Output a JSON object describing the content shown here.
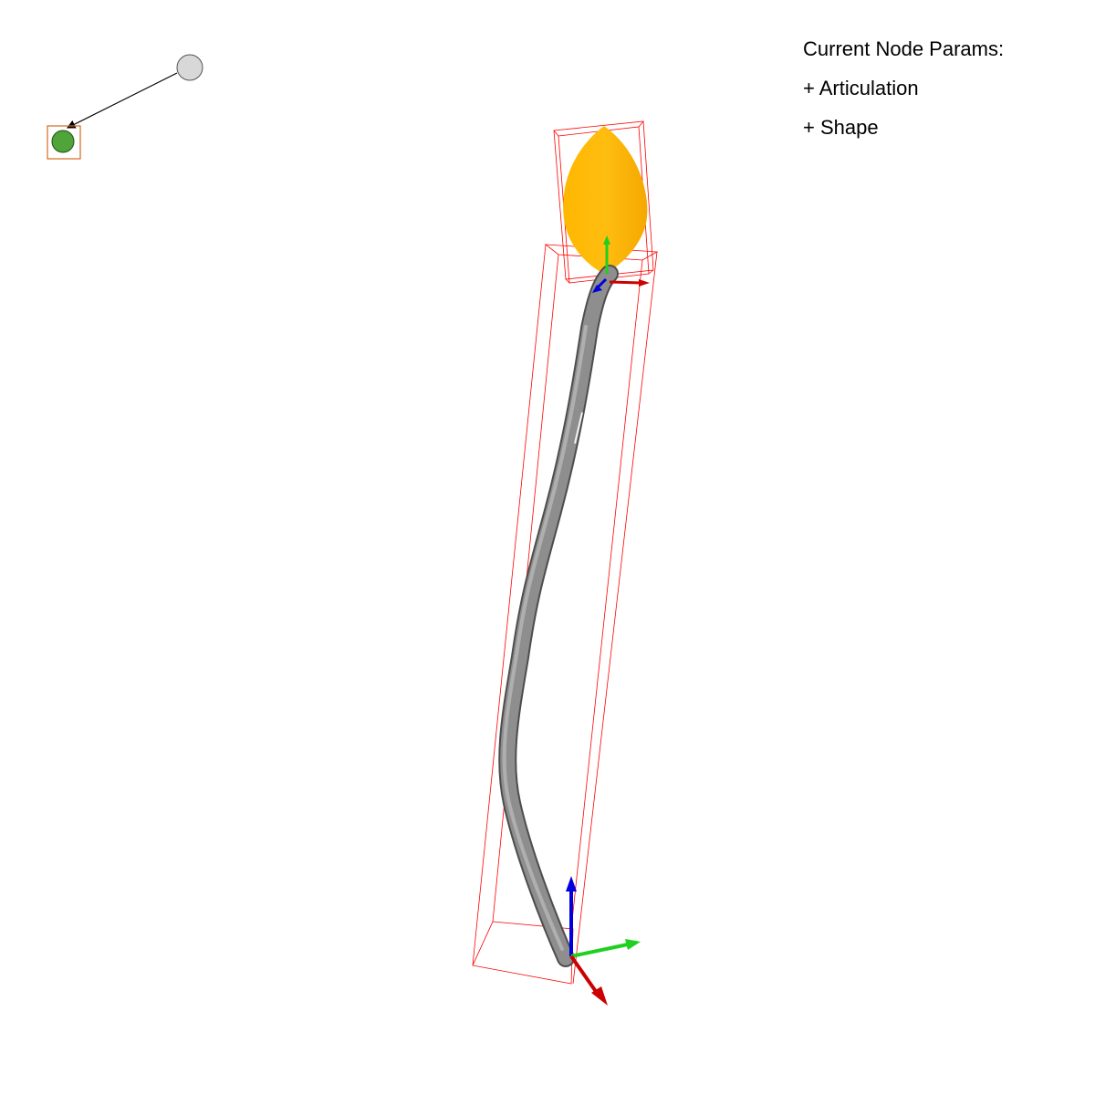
{
  "params_panel": {
    "title": "Current Node Params:",
    "items": [
      {
        "label": "+ Articulation"
      },
      {
        "label": "+ Shape"
      }
    ]
  },
  "node_graph": {
    "nodes": [
      {
        "id": "parent",
        "state": "inactive",
        "color": "#d8d8d8"
      },
      {
        "id": "current",
        "state": "selected",
        "color": "#4fa43a"
      }
    ],
    "selection_color": "#d2691e"
  },
  "scene": {
    "stem_color": "#8a8a8a",
    "leaf_color": "#ffb300",
    "bounding_box_color": "#ff0000",
    "axis_colors": {
      "x": "#cc0000",
      "y": "#1fd01f",
      "z": "#0000dd"
    }
  }
}
